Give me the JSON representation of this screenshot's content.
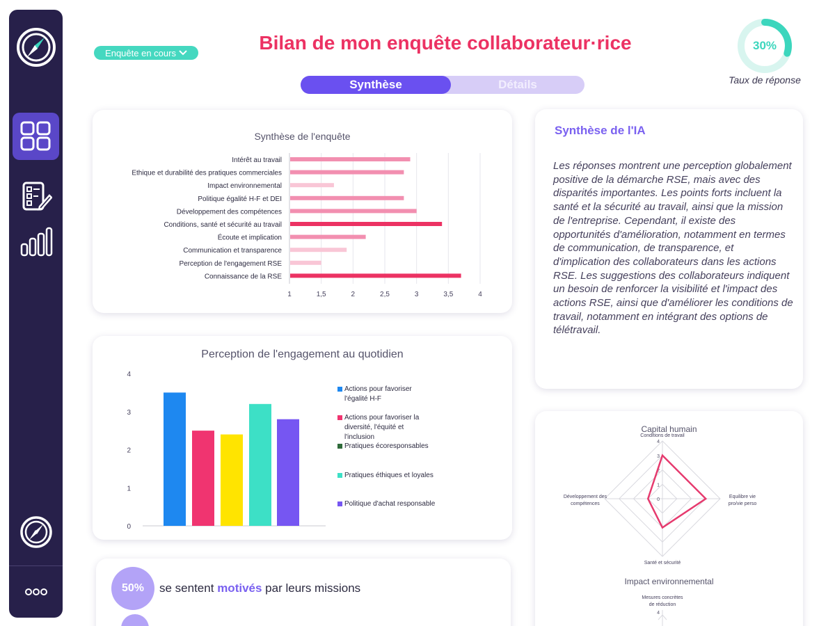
{
  "header": {
    "status_label": "Enquête en cours",
    "title": "Bilan de mon enquête collaborateur·rice",
    "response_rate": "30%",
    "response_rate_value": 0.3,
    "response_rate_label": "Taux de réponse"
  },
  "tabs": [
    {
      "label": "Synthèse",
      "active": true
    },
    {
      "label": "Détails",
      "active": false
    }
  ],
  "sidebar": {
    "items": [
      {
        "icon": "dashboard-grid-icon",
        "active": true
      },
      {
        "icon": "form-edit-icon",
        "active": false
      },
      {
        "icon": "bar-chart-icon",
        "active": false
      }
    ],
    "bottom_icon": "compass-icon",
    "more_icon": "more-dots-icon"
  },
  "colors": {
    "sidebar_bg": "#27204a",
    "accent_purple": "#6a50f0",
    "title_pink": "#ec3263",
    "teal": "#45d8c0"
  },
  "ia": {
    "title": "Synthèse de l'IA",
    "text": "Les réponses montrent une perception globalement positive de la démarche RSE, mais avec des disparités importantes. Les points forts incluent la santé et la sécurité au travail, ainsi que la mission de l'entreprise. Cependant, il existe des opportunités d'amélioration, notamment en termes de communication, de transparence, et d'implication des collaborateurs dans les actions RSE. Les suggestions des collaborateurs indiquent un besoin de renforcer la visibilité et l'impact des actions RSE, ainsi que d'améliorer les conditions de travail, notamment en intégrant des options de télétravail."
  },
  "stat": {
    "value": "50%",
    "prefix": "se sentent",
    "highlight": "motivés",
    "suffix": "par leurs missions"
  },
  "chart_data": [
    {
      "type": "bar",
      "orientation": "horizontal",
      "title": "Synthèse de l'enquête",
      "categories": [
        "Intérêt au travail",
        "Ethique et durabilité des pratiques commerciales",
        "Impact environnemental",
        "Politique égalité H-F et DEI",
        "Développement des compétences",
        "Conditions, santé et sécurité au travail",
        "Écoute et implication",
        "Communication et transparence",
        "Perception de l'engagement RSE",
        "Connaissance de la RSE"
      ],
      "values": [
        2.9,
        2.8,
        1.7,
        2.8,
        3.0,
        3.4,
        2.2,
        1.9,
        1.5,
        3.7
      ],
      "colors": [
        "#f28fb0",
        "#f28fb0",
        "#f9c6d6",
        "#f28fb0",
        "#f28fb0",
        "#ec3263",
        "#f28fb0",
        "#f9c6d6",
        "#f9c6d6",
        "#ec3263"
      ],
      "xticks": [
        "1",
        "1,5",
        "2",
        "2,5",
        "3",
        "3,5",
        "4"
      ],
      "xlim": [
        1,
        4
      ],
      "grid": true
    },
    {
      "type": "bar",
      "title": "Perception de l'engagement au quotidien",
      "series": [
        {
          "name": "Actions pour favoriser l'égalité H-F",
          "value": 3.5,
          "color": "#1e88f0"
        },
        {
          "name": "Actions pour favoriser la diversité, l'équité et l'inclusion",
          "value": 2.5,
          "color": "#f03470"
        },
        {
          "name": "Pratiques écoresponsables",
          "value": 2.4,
          "color": "#ffe400",
          "legend_color": "#2f6b3a"
        },
        {
          "name": "Pratiques éthiques et loyales",
          "value": 3.2,
          "color": "#3de0c6"
        },
        {
          "name": "Politique d'achat responsable",
          "value": 2.8,
          "color": "#7656f2"
        }
      ],
      "yticks": [
        "0",
        "1",
        "2",
        "3",
        "4"
      ],
      "ylim": [
        0,
        4
      ],
      "legend": "right"
    },
    {
      "type": "radar",
      "title": "Capital humain",
      "axes": [
        "Conditions de travail",
        "Equilibre vie pro/vie perso",
        "Santé et sécurité",
        "Développement des compétences"
      ],
      "values": [
        3.0,
        3.0,
        2.0,
        1.0
      ],
      "ticks": [
        "0",
        "1",
        "2",
        "3",
        "4"
      ],
      "max": 4,
      "color": "#e63a6e"
    },
    {
      "type": "radar",
      "title": "Impact environnemental",
      "axes": [
        "Mesures concrètes de réduction"
      ],
      "ticks": [
        "4"
      ],
      "max": 4
    }
  ]
}
